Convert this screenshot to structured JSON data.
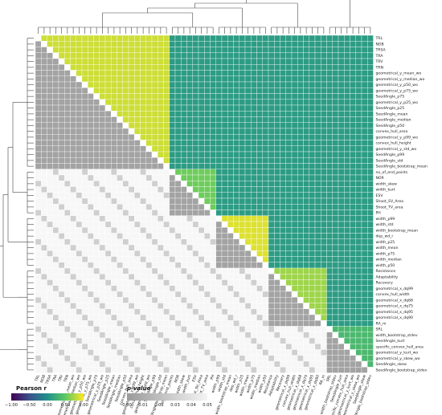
{
  "chart_data": {
    "type": "heatmap",
    "variables": [
      "TRL",
      "NOB",
      "TRSA",
      "TRA",
      "TRV",
      "TRN",
      "geometrical_y_mean_wo",
      "geometrical_y_median_wo",
      "geometrical_y_p50_wo",
      "geometrical_y_p75_wo",
      "SeedAngle_p75",
      "geometrical_y_p25_wo",
      "SeedAngle_p25",
      "SeedAngle_mean",
      "SeedAngle_median",
      "SeedAngle_p50",
      "convex_hull_area",
      "geometrical_y_p99_wo",
      "convex_hull_height",
      "geometrical_y_std_wo",
      "SeedAngle_p99",
      "SeedAngle_std",
      "SeedAngle_bootstrap_mean",
      "no_of_end_points",
      "NOR",
      "width_skew",
      "width_kurt",
      "ESV",
      "Shoot_SV_Area",
      "Shoot_TV_area",
      "PH",
      "width_p99",
      "width_std",
      "width_bootstrap_mean",
      "dep_wd_r",
      "width_p25",
      "width_mean",
      "width_p75",
      "width_median",
      "width_p50",
      "Resistance",
      "Adaptability",
      "Recovery",
      "geometrical_x_dq99",
      "convex_hull_width",
      "geometrical_x_dq68",
      "geometrical_x_dq75",
      "geometrical_x_dq95",
      "geometrical_x_dq90",
      "RA_m",
      "SRL",
      "width_bootstrap_stdev",
      "SeedAngle_kurt",
      "specific_convex_hull_area",
      "geometrical_y_kurt_wo",
      "geometrical_y_skew_wo",
      "SeedAngle_skew",
      "SeedAngle_bootstrap_stdev"
    ],
    "r_blocks": [
      {
        "from": 0,
        "to": 22,
        "value": 0.85
      },
      {
        "from": 23,
        "to": 30,
        "value": 0.55
      },
      {
        "from": 31,
        "to": 39,
        "value": 0.9
      },
      {
        "from": 40,
        "to": 49,
        "value": 0.7
      },
      {
        "from": 50,
        "to": 57,
        "value": 0.35
      }
    ],
    "r_default": 0.1,
    "legend_r": {
      "title": "Pearson r",
      "ticks": [
        "−1.00",
        "−0.50",
        "0.00",
        "0.50",
        "1.00"
      ],
      "colors": [
        "#440154",
        "#3b528b",
        "#21918c",
        "#5ec962",
        "#fde725"
      ]
    },
    "legend_p": {
      "title": "p-value",
      "ticks": [
        "0.00",
        "0.01",
        "0.02",
        "0.03",
        "0.04",
        "0.05"
      ],
      "colors": [
        "#9a9a9a",
        "#c8c8c8",
        "#f4f4f4"
      ]
    },
    "grid": true
  }
}
